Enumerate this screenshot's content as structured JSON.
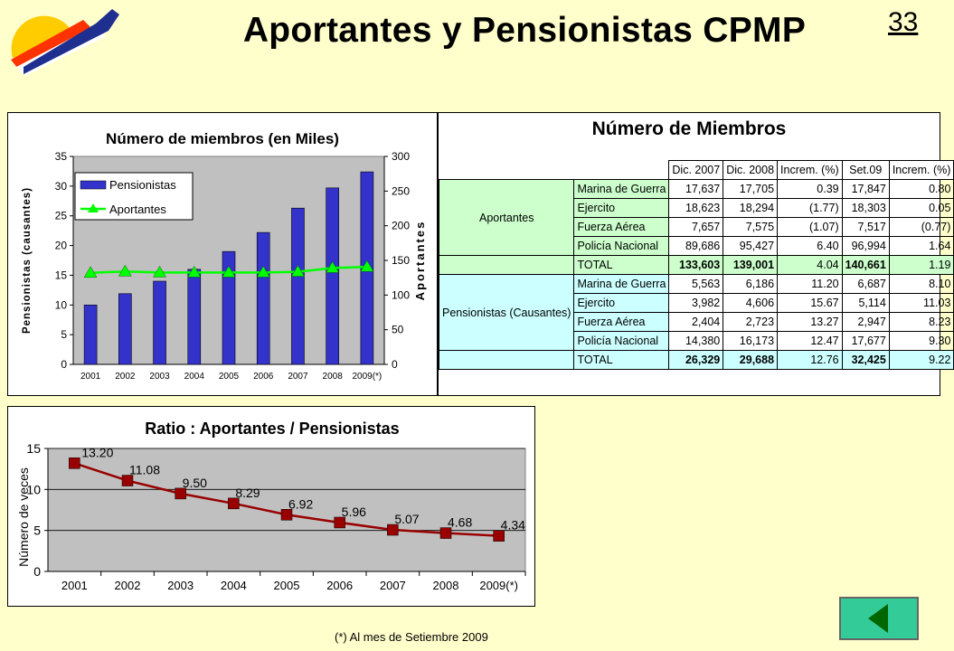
{
  "page": {
    "title": "Aportantes y Pensionistas CPMP",
    "page_number": "33",
    "footnote": "(*) Al mes de Setiembre 2009",
    "colors": {
      "background": "#FFFFCC",
      "bar": "#3333CC",
      "aportantes_line": "#00FF00",
      "ratio_line": "#990000",
      "plot_bg": "#C0C0C0",
      "nav_button": "#33CC99"
    }
  },
  "table": {
    "title": "Número de Miembros",
    "headers": [
      "Dic. 2007",
      "Dic. 2008",
      "Increm. (%)",
      "Set.09",
      "Increm. (%)"
    ],
    "groups": [
      {
        "name": "Aportantes",
        "rows": [
          {
            "label": "Marina de Guerra",
            "v": [
              "17,637",
              "17,705",
              "0.39",
              "17,847",
              "0.80"
            ]
          },
          {
            "label": "Ejercito",
            "v": [
              "18,623",
              "18,294",
              "(1.77)",
              "18,303",
              "0.05"
            ]
          },
          {
            "label": "Fuerza Aérea",
            "v": [
              "7,657",
              "7,575",
              "(1.07)",
              "7,517",
              "(0.77)"
            ]
          },
          {
            "label": "Policía Nacional",
            "v": [
              "89,686",
              "95,427",
              "6.40",
              "96,994",
              "1.64"
            ]
          }
        ],
        "total": {
          "label": "TOTAL",
          "v": [
            "133,603",
            "139,001",
            "4.04",
            "140,661",
            "1.19"
          ]
        }
      },
      {
        "name": "Pensionistas (Causantes)",
        "rows": [
          {
            "label": "Marina de Guerra",
            "v": [
              "5,563",
              "6,186",
              "11.20",
              "6,687",
              "8.10"
            ]
          },
          {
            "label": "Ejercito",
            "v": [
              "3,982",
              "4,606",
              "15.67",
              "5,114",
              "11.03"
            ]
          },
          {
            "label": "Fuerza Aérea",
            "v": [
              "2,404",
              "2,723",
              "13.27",
              "2,947",
              "8.23"
            ]
          },
          {
            "label": "Policía Nacional",
            "v": [
              "14,380",
              "16,173",
              "12.47",
              "17,677",
              "9.30"
            ]
          }
        ],
        "total": {
          "label": "TOTAL",
          "v": [
            "26,329",
            "29,688",
            "12.76",
            "32,425",
            "9.22"
          ]
        }
      }
    ]
  },
  "chart_data": [
    {
      "type": "bar",
      "title": "Número de miembros (en Miles)",
      "categories": [
        "2001",
        "2002",
        "2003",
        "2004",
        "2005",
        "2006",
        "2007",
        "2008",
        "2009(*)"
      ],
      "series": [
        {
          "name": "Pensionistas",
          "type": "bar",
          "axis": "left",
          "values": [
            10.0,
            11.9,
            14.0,
            16.0,
            19.0,
            22.2,
            26.3,
            29.7,
            32.4
          ]
        },
        {
          "name": "Aportantes",
          "type": "line",
          "axis": "right",
          "values": [
            132,
            134,
            132.5,
            132.5,
            132.5,
            132.5,
            133.6,
            139.0,
            140.7
          ]
        }
      ],
      "ylabel": "Pensionistas (causantes)",
      "y2label": "Aportantes",
      "ylim": [
        0,
        35
      ],
      "yticks": [
        0,
        5,
        10,
        15,
        20,
        25,
        30,
        35
      ],
      "y2lim": [
        0,
        300
      ],
      "y2ticks": [
        0,
        50,
        100,
        150,
        200,
        250,
        300
      ],
      "legend": "top-left",
      "grid": false
    },
    {
      "type": "line",
      "title": "Ratio : Aportantes / Pensionistas",
      "categories": [
        "2001",
        "2002",
        "2003",
        "2004",
        "2005",
        "2006",
        "2007",
        "2008",
        "2009(*)"
      ],
      "series": [
        {
          "values": [
            13.2,
            11.08,
            9.5,
            8.29,
            6.92,
            5.96,
            5.07,
            4.68,
            4.34
          ],
          "labels": [
            "13.20",
            "11.08",
            "9.50",
            "8.29",
            "6.92",
            "5.96",
            "5.07",
            "4.68",
            "4.34"
          ]
        }
      ],
      "ylabel": "Número de veces",
      "ylim": [
        0,
        15
      ],
      "yticks": [
        0,
        5,
        10,
        15
      ],
      "grid": true
    }
  ]
}
